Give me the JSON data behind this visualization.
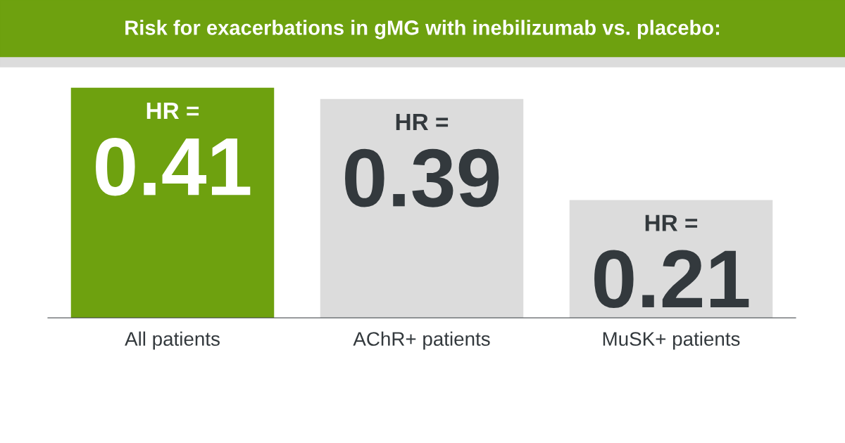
{
  "chart_data": {
    "type": "bar",
    "title": "Risk for exacerbations in gMG with inebilizumab vs. placebo:",
    "categories": [
      "All patients",
      "AChR+ patients",
      "MuSK+ patients"
    ],
    "values": [
      0.41,
      0.39,
      0.21
    ],
    "colors": [
      "#6ea10f",
      "#dcdcdc",
      "#dcdcdc"
    ],
    "value_labels": [
      "HR =\n0.41",
      "HR =\n0.39",
      "HR =\n0.21"
    ]
  }
}
